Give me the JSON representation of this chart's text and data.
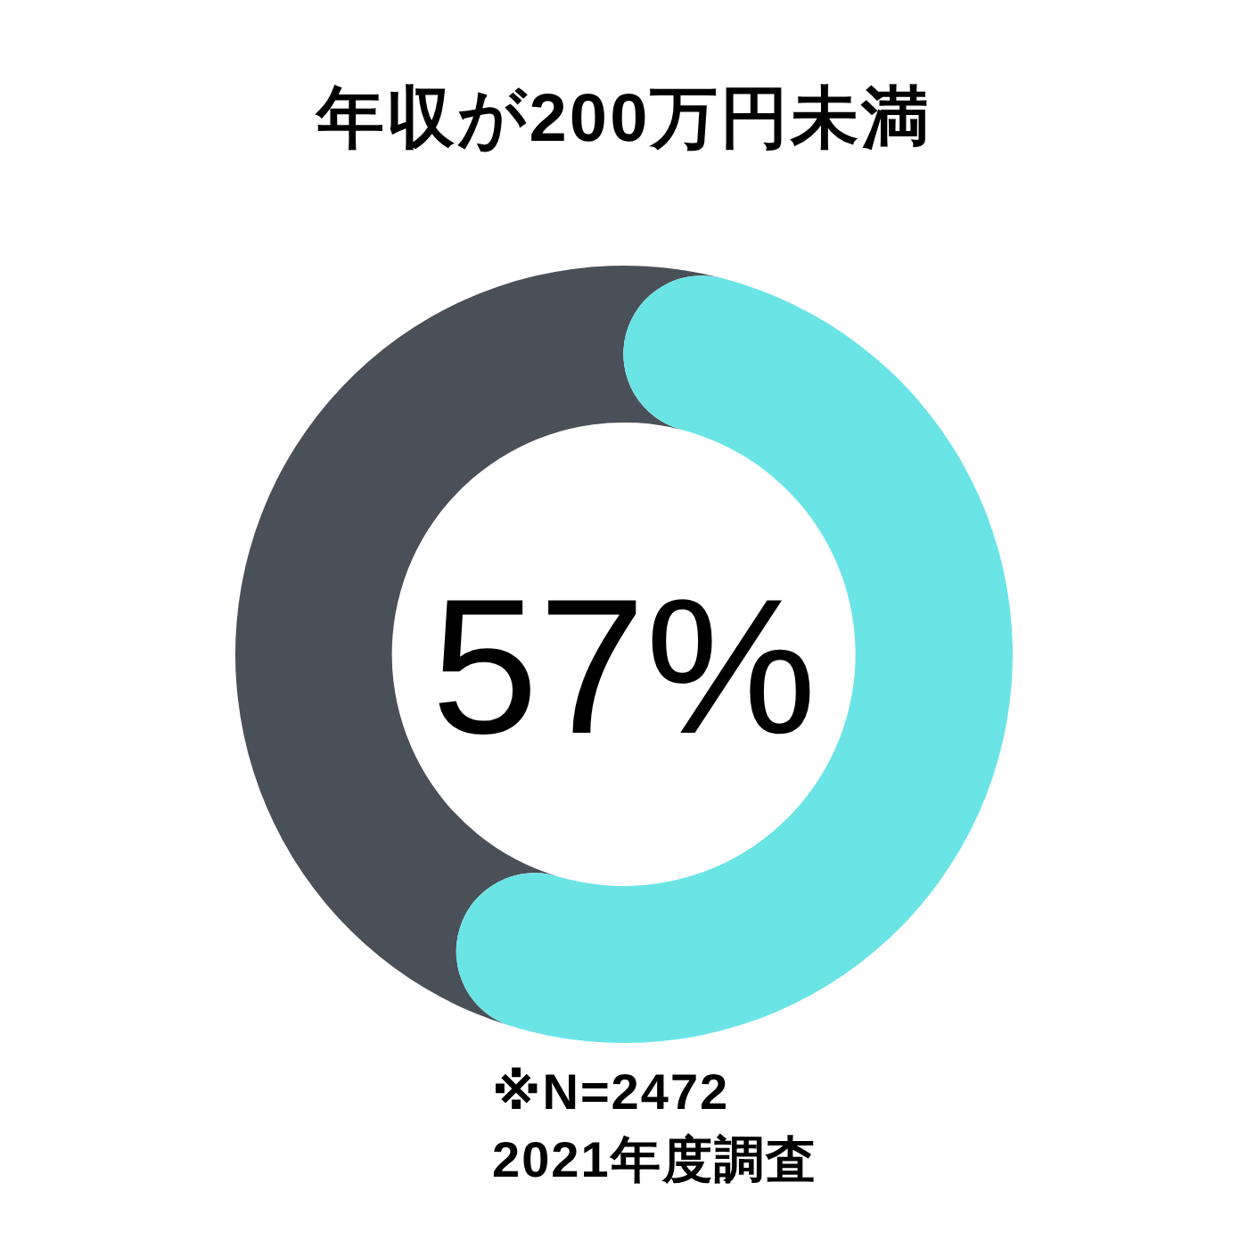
{
  "chart_data": {
    "type": "donut",
    "title": "年収が200万円未満",
    "categories": [
      null,
      null
    ],
    "values": [
      57,
      43
    ],
    "colors": [
      "#6be4e6",
      "#4a5058"
    ],
    "value_labels": [
      "57%",
      null
    ],
    "annotations": [
      "※N=2472",
      "2021年度調査"
    ]
  }
}
